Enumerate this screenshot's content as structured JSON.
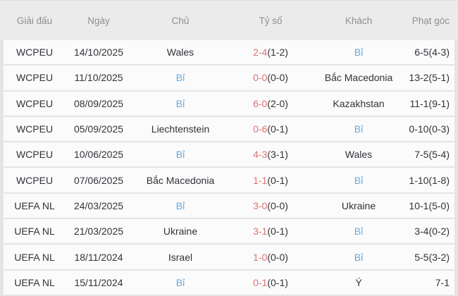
{
  "colors": {
    "page_bg": "#e4e4e4",
    "header_bg": "#ebebeb",
    "header_text": "#8f8f8f",
    "row_bg": "#fbfbfb",
    "text_dark": "#32323a",
    "score_red": "#e07272",
    "team_blue": "#6aa7d9"
  },
  "table": {
    "highlight_team": "Bỉ",
    "headers": [
      {
        "key": "tournament",
        "label": "Giải đấu"
      },
      {
        "key": "date",
        "label": "Ngày"
      },
      {
        "key": "home",
        "label": "Chủ"
      },
      {
        "key": "score",
        "label": "Tỷ số"
      },
      {
        "key": "away",
        "label": "Khách"
      },
      {
        "key": "corners",
        "label": "Phạt góc"
      }
    ],
    "rows": [
      {
        "tournament": "WCPEU",
        "date": "14/10/2025",
        "home": "Wales",
        "score": "2-4",
        "half": "(1-2)",
        "away": "Bỉ",
        "corners": "6-5(4-3)"
      },
      {
        "tournament": "WCPEU",
        "date": "11/10/2025",
        "home": "Bỉ",
        "score": "0-0",
        "half": "(0-0)",
        "away": "Bắc Macedonia",
        "corners": "13-2(5-1)"
      },
      {
        "tournament": "WCPEU",
        "date": "08/09/2025",
        "home": "Bỉ",
        "score": "6-0",
        "half": "(2-0)",
        "away": "Kazakhstan",
        "corners": "11-1(9-1)"
      },
      {
        "tournament": "WCPEU",
        "date": "05/09/2025",
        "home": "Liechtenstein",
        "score": "0-6",
        "half": "(0-1)",
        "away": "Bỉ",
        "corners": "0-10(0-3)"
      },
      {
        "tournament": "WCPEU",
        "date": "10/06/2025",
        "home": "Bỉ",
        "score": "4-3",
        "half": "(3-1)",
        "away": "Wales",
        "corners": "7-5(5-4)"
      },
      {
        "tournament": "WCPEU",
        "date": "07/06/2025",
        "home": "Bắc Macedonia",
        "score": "1-1",
        "half": "(0-1)",
        "away": "Bỉ",
        "corners": "1-10(1-8)"
      },
      {
        "tournament": "UEFA NL",
        "date": "24/03/2025",
        "home": "Bỉ",
        "score": "3-0",
        "half": "(0-0)",
        "away": "Ukraine",
        "corners": "10-1(5-0)"
      },
      {
        "tournament": "UEFA NL",
        "date": "21/03/2025",
        "home": "Ukraine",
        "score": "3-1",
        "half": "(0-1)",
        "away": "Bỉ",
        "corners": "3-4(0-2)"
      },
      {
        "tournament": "UEFA NL",
        "date": "18/11/2024",
        "home": "Israel",
        "score": "1-0",
        "half": "(0-0)",
        "away": "Bỉ",
        "corners": "5-5(3-2)"
      },
      {
        "tournament": "UEFA NL",
        "date": "15/11/2024",
        "home": "Bỉ",
        "score": "0-1",
        "half": "(0-1)",
        "away": "Ý",
        "corners": "7-1"
      }
    ]
  }
}
